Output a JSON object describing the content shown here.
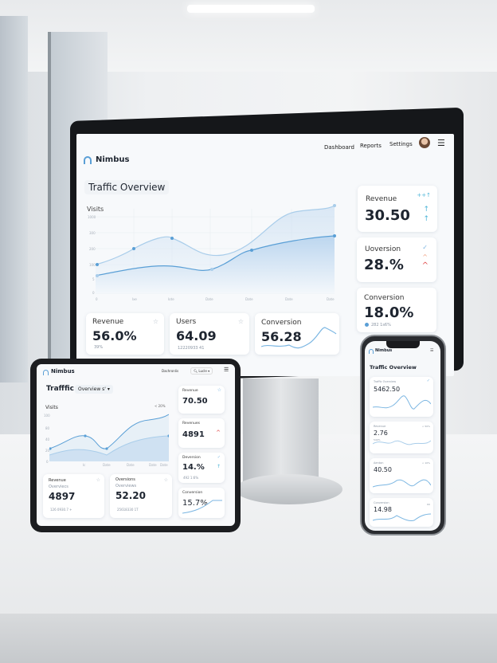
{
  "monitor": {
    "brand": "Nimbus",
    "nav": [
      "Dashboard",
      "Reports",
      "Settings"
    ],
    "title": "Traffic Overview",
    "chart_label": "Visits",
    "y_ticks": [
      "1000",
      "300",
      "200",
      "100",
      "5",
      "0"
    ],
    "x_ticks": [
      "0",
      "Ixe",
      "Iote",
      "Date",
      "Date",
      "Date",
      "Date"
    ],
    "cards": [
      {
        "label": "Revenue",
        "value": "56.0%",
        "sub": "39%"
      },
      {
        "label": "Users",
        "value": "64.09",
        "sub": "12220933 41"
      },
      {
        "label": "Conversion",
        "value": "56.28"
      }
    ],
    "side_cards": [
      {
        "label": "Revenue",
        "value": "30.50",
        "badge": "++↑"
      },
      {
        "label": "Uoversion",
        "value": "28.%"
      },
      {
        "label": "Conversion",
        "value": "18.0%",
        "sub": "282 1s6%"
      }
    ]
  },
  "tablet": {
    "brand": "Nimbus",
    "nav": "Dachronlis",
    "search": "Lucle",
    "title": "Trafffic",
    "dropdown": "Overview s'",
    "chart_label": "Visits",
    "chart_badge": "< 20%",
    "y_ticks": [
      "100",
      "80",
      "40",
      "20",
      "0"
    ],
    "x_ticks": [
      "Ic",
      "Date",
      "Date",
      "Date",
      "Date"
    ],
    "cards": [
      {
        "label": "Revenue",
        "sub_label": "Overviecs",
        "value": "4897",
        "sub": "126 0930.7 +"
      },
      {
        "label": "Oversions",
        "sub_label": "Overviews",
        "value": "52.20",
        "sub": "25618330 1T"
      }
    ],
    "side_cards": [
      {
        "label": "Revenue",
        "value": "70.50"
      },
      {
        "label": "Revenues",
        "value": "4891"
      },
      {
        "label": "Deversion",
        "value": "14.%",
        "sub": "492 1:6%"
      },
      {
        "label": "Conversion",
        "value": "15.7%"
      }
    ]
  },
  "phone": {
    "brand": "Nimbus",
    "title": "Traffic Overview",
    "cards": [
      {
        "label": "Traffic Overview",
        "value": "5462.50"
      },
      {
        "label": "Revenue",
        "value": "2.76",
        "sub": "540%",
        "badge": "< 50%"
      },
      {
        "label": "Aenton",
        "value": "40.50",
        "badge": "< 10%"
      },
      {
        "label": "Conversion",
        "value": "14.98",
        "badge": "60"
      }
    ]
  },
  "colors": {
    "accent": "#5a9fd6",
    "line_light": "#a9cdea",
    "up": "#4fb6d8",
    "down": "#e04848"
  }
}
